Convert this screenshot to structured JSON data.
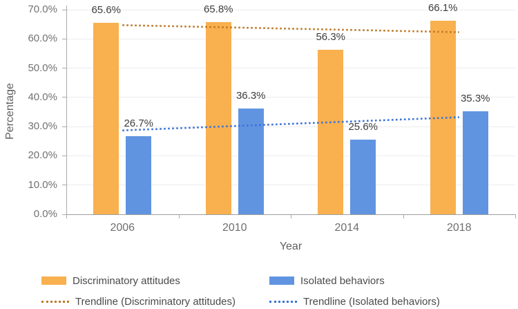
{
  "chart_data": {
    "type": "bar",
    "title": "",
    "categories": [
      "2006",
      "2010",
      "2014",
      "2018"
    ],
    "series": [
      {
        "name": "Discriminatory attitudes",
        "color": "#F9B04E",
        "values": [
          65.6,
          65.8,
          56.3,
          66.1
        ],
        "data_labels": [
          "65.6%",
          "65.8%",
          "56.3%",
          "66.1%"
        ]
      },
      {
        "name": "Isolated behaviors",
        "color": "#6094E1",
        "values": [
          26.7,
          36.3,
          25.6,
          35.3
        ],
        "data_labels": [
          "26.7%",
          "36.3%",
          "25.6%",
          "35.3%"
        ]
      }
    ],
    "trendlines": [
      {
        "name": "Trendline (Discriminatory attitudes)",
        "color": "#BC7A28",
        "start_value": 64.7,
        "end_value": 62.3
      },
      {
        "name": "Trendline (Isolated behaviors)",
        "color": "#3B72D8",
        "start_value": 28.7,
        "end_value": 33.2
      }
    ],
    "xlabel": "Year",
    "ylabel": "Percentage",
    "ylim": [
      0,
      70
    ],
    "ytick_labels": [
      "0.0%",
      "10.0%",
      "20.0%",
      "30.0%",
      "40.0%",
      "50.0%",
      "60.0%",
      "70.0%"
    ],
    "grid": true,
    "legend_position": "bottom"
  }
}
